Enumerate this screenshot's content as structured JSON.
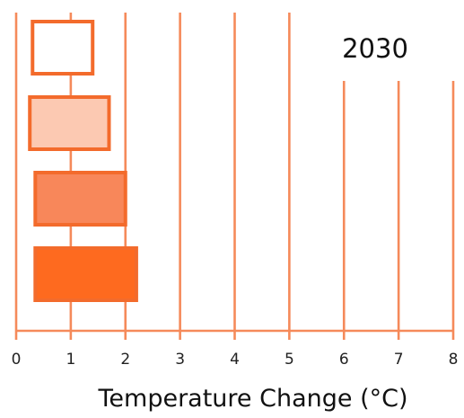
{
  "chart_data": {
    "type": "bar",
    "subtype": "horizontal-range",
    "annotation": "2030",
    "xlabel": "Temperature Change (°C)",
    "xlim": [
      0,
      8
    ],
    "x_ticks": [
      "0",
      "1",
      "2",
      "3",
      "4",
      "5",
      "6",
      "7",
      "8"
    ],
    "grid": true,
    "series": [
      {
        "range": [
          0.3,
          1.4
        ],
        "color": "#ffffff"
      },
      {
        "range": [
          0.25,
          1.7
        ],
        "color": "#fcc9b2"
      },
      {
        "range": [
          0.35,
          2.0
        ],
        "color": "#f8875a"
      },
      {
        "range": [
          0.35,
          2.2
        ],
        "color": "#fe6a1f"
      }
    ],
    "whisker_x": 1.0
  }
}
